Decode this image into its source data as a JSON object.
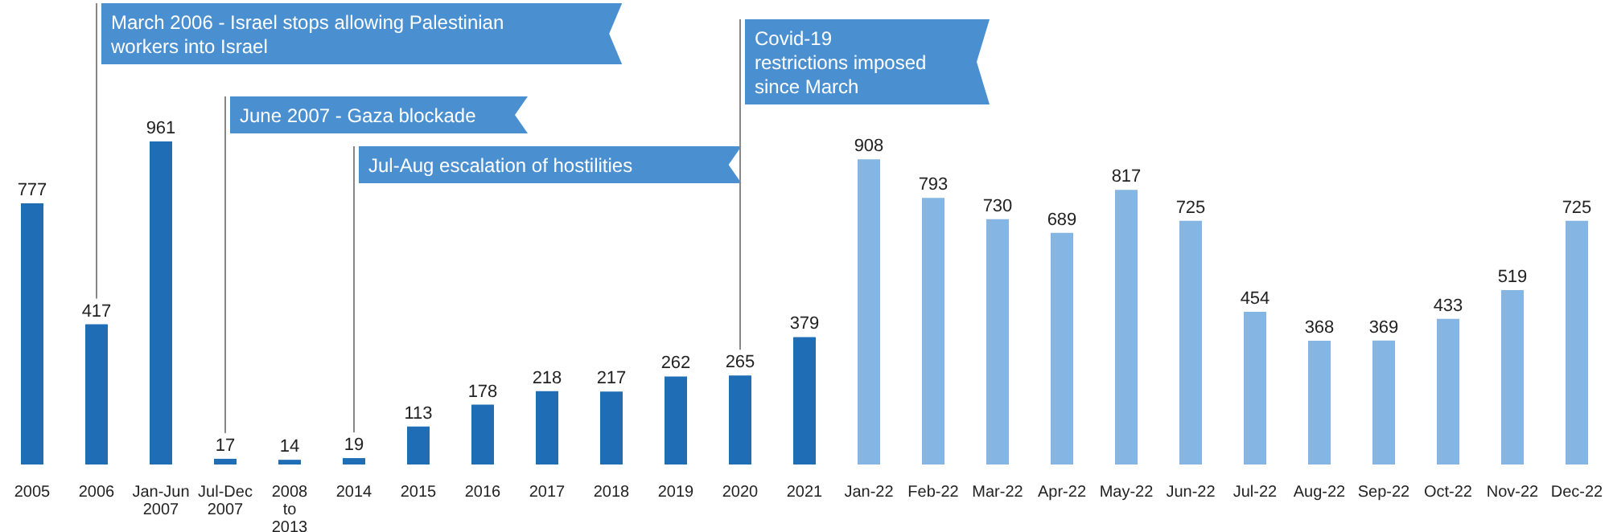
{
  "chart_data": {
    "type": "bar",
    "categories": [
      "2005",
      "2006",
      "Jan-Jun 2007",
      "Jul-Dec 2007",
      "2008 to 2013",
      "2014",
      "2015",
      "2016",
      "2017",
      "2018",
      "2019",
      "2020",
      "2021",
      "Jan-22",
      "Feb-22",
      "Mar-22",
      "Apr-22",
      "May-22",
      "Jun-22",
      "Jul-22",
      "Aug-22",
      "Sep-22",
      "Oct-22",
      "Nov-22",
      "Dec-22"
    ],
    "values": [
      777,
      417,
      961,
      17,
      14,
      19,
      113,
      178,
      218,
      217,
      262,
      265,
      379,
      908,
      793,
      730,
      689,
      817,
      725,
      454,
      368,
      369,
      433,
      519,
      725
    ],
    "colors": [
      "#1f6db5",
      "#1f6db5",
      "#1f6db5",
      "#1f6db5",
      "#1f6db5",
      "#1f6db5",
      "#1f6db5",
      "#1f6db5",
      "#1f6db5",
      "#1f6db5",
      "#1f6db5",
      "#1f6db5",
      "#1f6db5",
      "#85b6e3",
      "#85b6e3",
      "#85b6e3",
      "#85b6e3",
      "#85b6e3",
      "#85b6e3",
      "#85b6e3",
      "#85b6e3",
      "#85b6e3",
      "#85b6e3",
      "#85b6e3",
      "#85b6e3"
    ],
    "data_labels": true,
    "annotations": [
      "March 2006 - Israel stops allowing Palestinian workers into Israel",
      "June 2007 - Gaza blockade",
      "Jul-Aug escalation of hostilities",
      "Covid-19 restrictions imposed since March"
    ]
  }
}
